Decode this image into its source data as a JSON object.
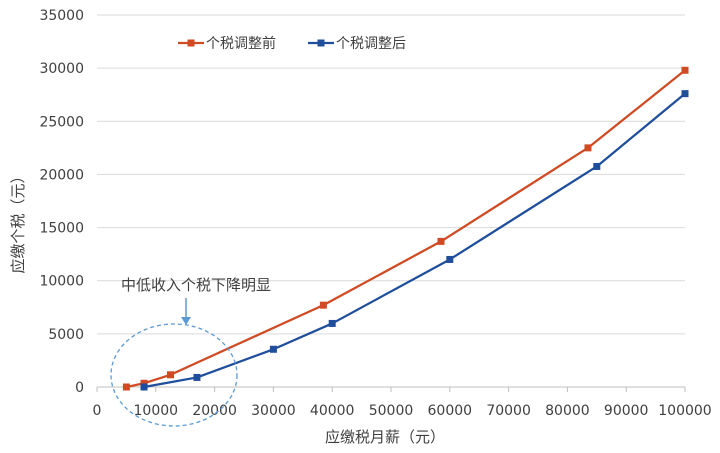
{
  "chart_data": {
    "type": "line",
    "xlabel": "应缴税月薪（元）",
    "ylabel": "应缴个税（元）",
    "xlim": [
      0,
      100000
    ],
    "ylim": [
      0,
      35000
    ],
    "x_ticks": [
      "0",
      "10000",
      "20000",
      "30000",
      "40000",
      "50000",
      "60000",
      "70000",
      "80000",
      "90000",
      "100000"
    ],
    "y_ticks": [
      "0",
      "5000",
      "10000",
      "15000",
      "20000",
      "25000",
      "30000",
      "35000"
    ],
    "grid": "horizontal",
    "legend_position": "top-left",
    "series": [
      {
        "name": "个税调整前",
        "color": "#D04A23",
        "marker": "square",
        "points": [
          [
            5000,
            0
          ],
          [
            8000,
            350
          ],
          [
            12500,
            1150
          ],
          [
            38500,
            7700
          ],
          [
            58500,
            13700
          ],
          [
            83500,
            22500
          ],
          [
            100000,
            29800
          ]
        ]
      },
      {
        "name": "个税调整后",
        "color": "#1F4E9C",
        "marker": "square",
        "points": [
          [
            8000,
            0
          ],
          [
            17000,
            900
          ],
          [
            30000,
            3550
          ],
          [
            40000,
            5980
          ],
          [
            60000,
            12000
          ],
          [
            85000,
            20750
          ],
          [
            100000,
            27600
          ]
        ]
      }
    ],
    "annotation": {
      "text": "中低收入个税下降明显",
      "color": "#5B9BD5"
    }
  }
}
